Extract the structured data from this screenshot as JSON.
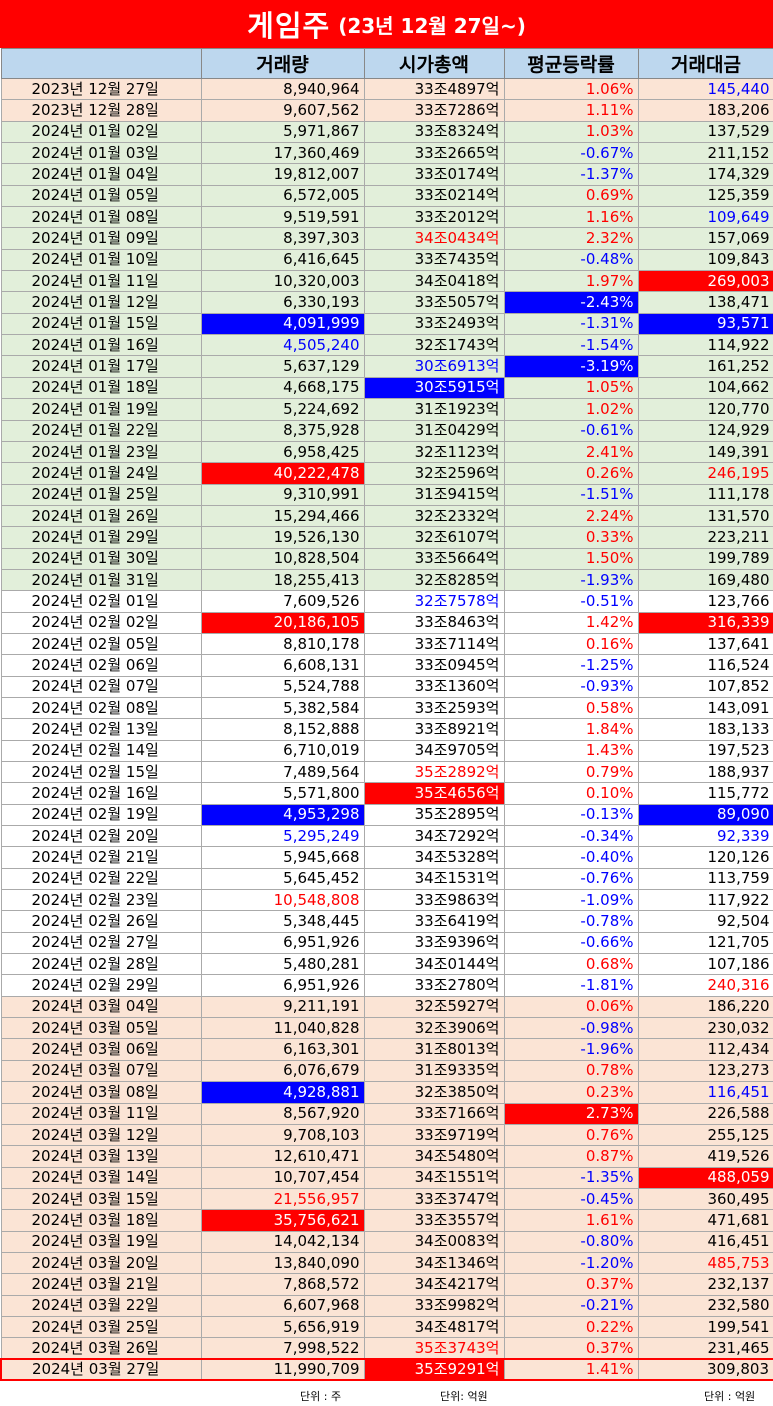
{
  "title": {
    "main": "게임주",
    "sub": "(23년 12월 27일~)"
  },
  "headers": [
    "",
    "거래량",
    "시가총액",
    "평균등락률",
    "거래대금"
  ],
  "rows": [
    {
      "date": "2023년 12월 27일",
      "vol": "8,940,964",
      "cap": "33조4897억",
      "chg": "1.06%",
      "amt": "145,440",
      "bg": "peach",
      "amt_s": "b"
    },
    {
      "date": "2023년 12월 28일",
      "vol": "9,607,562",
      "cap": "33조7286억",
      "chg": "1.11%",
      "amt": "183,206",
      "bg": "peach"
    },
    {
      "date": "2024년 01월 02일",
      "vol": "5,971,867",
      "cap": "33조8324억",
      "chg": "1.03%",
      "amt": "137,529",
      "bg": "green"
    },
    {
      "date": "2024년 01월 03일",
      "vol": "17,360,469",
      "cap": "33조2665억",
      "chg": "-0.67%",
      "amt": "211,152",
      "bg": "green"
    },
    {
      "date": "2024년 01월 04일",
      "vol": "19,812,007",
      "cap": "33조0174억",
      "chg": "-1.37%",
      "amt": "174,329",
      "bg": "green"
    },
    {
      "date": "2024년 01월 05일",
      "vol": "6,572,005",
      "cap": "33조0214억",
      "chg": "0.69%",
      "amt": "125,359",
      "bg": "green"
    },
    {
      "date": "2024년 01월 08일",
      "vol": "9,519,591",
      "cap": "33조2012억",
      "chg": "1.16%",
      "amt": "109,649",
      "bg": "green",
      "amt_s": "b"
    },
    {
      "date": "2024년 01월 09일",
      "vol": "8,397,303",
      "cap": "34조0434억",
      "chg": "2.32%",
      "amt": "157,069",
      "bg": "green",
      "cap_s": "r"
    },
    {
      "date": "2024년 01월 10일",
      "vol": "6,416,645",
      "cap": "33조7435억",
      "chg": "-0.48%",
      "amt": "109,843",
      "bg": "green"
    },
    {
      "date": "2024년 01월 11일",
      "vol": "10,320,003",
      "cap": "34조0418억",
      "chg": "1.97%",
      "amt": "269,003",
      "bg": "green",
      "amt_s": "hr"
    },
    {
      "date": "2024년 01월 12일",
      "vol": "6,330,193",
      "cap": "33조5057억",
      "chg": "-2.43%",
      "amt": "138,471",
      "bg": "green",
      "chg_s": "hb"
    },
    {
      "date": "2024년 01월 15일",
      "vol": "4,091,999",
      "cap": "33조2493억",
      "chg": "-1.31%",
      "amt": "93,571",
      "bg": "green",
      "vol_s": "hb",
      "amt_s": "hb"
    },
    {
      "date": "2024년 01월 16일",
      "vol": "4,505,240",
      "cap": "32조1743억",
      "chg": "-1.54%",
      "amt": "114,922",
      "bg": "green",
      "vol_s": "b"
    },
    {
      "date": "2024년 01월 17일",
      "vol": "5,637,129",
      "cap": "30조6913억",
      "chg": "-3.19%",
      "amt": "161,252",
      "bg": "green",
      "cap_s": "b",
      "chg_s": "hb"
    },
    {
      "date": "2024년 01월 18일",
      "vol": "4,668,175",
      "cap": "30조5915억",
      "chg": "1.05%",
      "amt": "104,662",
      "bg": "green",
      "cap_s": "hb"
    },
    {
      "date": "2024년 01월 19일",
      "vol": "5,224,692",
      "cap": "31조1923억",
      "chg": "1.02%",
      "amt": "120,770",
      "bg": "green"
    },
    {
      "date": "2024년 01월 22일",
      "vol": "8,375,928",
      "cap": "31조0429억",
      "chg": "-0.61%",
      "amt": "124,929",
      "bg": "green"
    },
    {
      "date": "2024년 01월 23일",
      "vol": "6,958,425",
      "cap": "32조1123억",
      "chg": "2.41%",
      "amt": "149,391",
      "bg": "green"
    },
    {
      "date": "2024년 01월 24일",
      "vol": "40,222,478",
      "cap": "32조2596억",
      "chg": "0.26%",
      "amt": "246,195",
      "bg": "green",
      "vol_s": "hr",
      "amt_s": "r"
    },
    {
      "date": "2024년 01월 25일",
      "vol": "9,310,991",
      "cap": "31조9415억",
      "chg": "-1.51%",
      "amt": "111,178",
      "bg": "green"
    },
    {
      "date": "2024년 01월 26일",
      "vol": "15,294,466",
      "cap": "32조2332억",
      "chg": "2.24%",
      "amt": "131,570",
      "bg": "green"
    },
    {
      "date": "2024년 01월 29일",
      "vol": "19,526,130",
      "cap": "32조6107억",
      "chg": "0.33%",
      "amt": "223,211",
      "bg": "green"
    },
    {
      "date": "2024년 01월 30일",
      "vol": "10,828,504",
      "cap": "33조5664억",
      "chg": "1.50%",
      "amt": "199,789",
      "bg": "green"
    },
    {
      "date": "2024년 01월 31일",
      "vol": "18,255,413",
      "cap": "32조8285억",
      "chg": "-1.93%",
      "amt": "169,480",
      "bg": "green"
    },
    {
      "date": "2024년 02월 01일",
      "vol": "7,609,526",
      "cap": "32조7578억",
      "chg": "-0.51%",
      "amt": "123,766",
      "bg": "white",
      "cap_s": "b"
    },
    {
      "date": "2024년 02월 02일",
      "vol": "20,186,105",
      "cap": "33조8463억",
      "chg": "1.42%",
      "amt": "316,339",
      "bg": "white",
      "vol_s": "hr",
      "amt_s": "hr"
    },
    {
      "date": "2024년 02월 05일",
      "vol": "8,810,178",
      "cap": "33조7114억",
      "chg": "0.16%",
      "amt": "137,641",
      "bg": "white"
    },
    {
      "date": "2024년 02월 06일",
      "vol": "6,608,131",
      "cap": "33조0945억",
      "chg": "-1.25%",
      "amt": "116,524",
      "bg": "white"
    },
    {
      "date": "2024년 02월 07일",
      "vol": "5,524,788",
      "cap": "33조1360억",
      "chg": "-0.93%",
      "amt": "107,852",
      "bg": "white"
    },
    {
      "date": "2024년 02월 08일",
      "vol": "5,382,584",
      "cap": "33조2593억",
      "chg": "0.58%",
      "amt": "143,091",
      "bg": "white"
    },
    {
      "date": "2024년 02월 13일",
      "vol": "8,152,888",
      "cap": "33조8921억",
      "chg": "1.84%",
      "amt": "183,133",
      "bg": "white"
    },
    {
      "date": "2024년 02월 14일",
      "vol": "6,710,019",
      "cap": "34조9705억",
      "chg": "1.43%",
      "amt": "197,523",
      "bg": "white"
    },
    {
      "date": "2024년 02월 15일",
      "vol": "7,489,564",
      "cap": "35조2892억",
      "chg": "0.79%",
      "amt": "188,937",
      "bg": "white",
      "cap_s": "r"
    },
    {
      "date": "2024년 02월 16일",
      "vol": "5,571,800",
      "cap": "35조4656억",
      "chg": "0.10%",
      "amt": "115,772",
      "bg": "white",
      "cap_s": "hr"
    },
    {
      "date": "2024년 02월 19일",
      "vol": "4,953,298",
      "cap": "35조2895억",
      "chg": "-0.13%",
      "amt": "89,090",
      "bg": "white",
      "vol_s": "hb",
      "amt_s": "hb"
    },
    {
      "date": "2024년 02월 20일",
      "vol": "5,295,249",
      "cap": "34조7292억",
      "chg": "-0.34%",
      "amt": "92,339",
      "bg": "white",
      "vol_s": "b",
      "amt_s": "b"
    },
    {
      "date": "2024년 02월 21일",
      "vol": "5,945,668",
      "cap": "34조5328억",
      "chg": "-0.40%",
      "amt": "120,126",
      "bg": "white"
    },
    {
      "date": "2024년 02월 22일",
      "vol": "5,645,452",
      "cap": "34조1531억",
      "chg": "-0.76%",
      "amt": "113,759",
      "bg": "white"
    },
    {
      "date": "2024년 02월 23일",
      "vol": "10,548,808",
      "cap": "33조9863억",
      "chg": "-1.09%",
      "amt": "117,922",
      "bg": "white",
      "vol_s": "r"
    },
    {
      "date": "2024년 02월 26일",
      "vol": "5,348,445",
      "cap": "33조6419억",
      "chg": "-0.78%",
      "amt": "92,504",
      "bg": "white"
    },
    {
      "date": "2024년 02월 27일",
      "vol": "6,951,926",
      "cap": "33조9396억",
      "chg": "-0.66%",
      "amt": "121,705",
      "bg": "white"
    },
    {
      "date": "2024년 02월 28일",
      "vol": "5,480,281",
      "cap": "34조0144억",
      "chg": "0.68%",
      "amt": "107,186",
      "bg": "white"
    },
    {
      "date": "2024년 02월 29일",
      "vol": "6,951,926",
      "cap": "33조2780억",
      "chg": "-1.81%",
      "amt": "240,316",
      "bg": "white",
      "amt_s": "r"
    },
    {
      "date": "2024년 03월 04일",
      "vol": "9,211,191",
      "cap": "32조5927억",
      "chg": "0.06%",
      "amt": "186,220",
      "bg": "peach"
    },
    {
      "date": "2024년 03월 05일",
      "vol": "11,040,828",
      "cap": "32조3906억",
      "chg": "-0.98%",
      "amt": "230,032",
      "bg": "peach"
    },
    {
      "date": "2024년 03월 06일",
      "vol": "6,163,301",
      "cap": "31조8013억",
      "chg": "-1.96%",
      "amt": "112,434",
      "bg": "peach"
    },
    {
      "date": "2024년 03월 07일",
      "vol": "6,076,679",
      "cap": "31조9335억",
      "chg": "0.78%",
      "amt": "123,273",
      "bg": "peach"
    },
    {
      "date": "2024년 03월 08일",
      "vol": "4,928,881",
      "cap": "32조3850억",
      "chg": "0.23%",
      "amt": "116,451",
      "bg": "peach",
      "vol_s": "hb",
      "amt_s": "b"
    },
    {
      "date": "2024년 03월 11일",
      "vol": "8,567,920",
      "cap": "33조7166억",
      "chg": "2.73%",
      "amt": "226,588",
      "bg": "peach",
      "chg_s": "hr"
    },
    {
      "date": "2024년 03월 12일",
      "vol": "9,708,103",
      "cap": "33조9719억",
      "chg": "0.76%",
      "amt": "255,125",
      "bg": "peach"
    },
    {
      "date": "2024년 03월 13일",
      "vol": "12,610,471",
      "cap": "34조5480억",
      "chg": "0.87%",
      "amt": "419,526",
      "bg": "peach"
    },
    {
      "date": "2024년 03월 14일",
      "vol": "10,707,454",
      "cap": "34조1551억",
      "chg": "-1.35%",
      "amt": "488,059",
      "bg": "peach",
      "amt_s": "hr"
    },
    {
      "date": "2024년 03월 15일",
      "vol": "21,556,957",
      "cap": "33조3747억",
      "chg": "-0.45%",
      "amt": "360,495",
      "bg": "peach",
      "vol_s": "r"
    },
    {
      "date": "2024년 03월 18일",
      "vol": "35,756,621",
      "cap": "33조3557억",
      "chg": "1.61%",
      "amt": "471,681",
      "bg": "peach",
      "vol_s": "hr"
    },
    {
      "date": "2024년 03월 19일",
      "vol": "14,042,134",
      "cap": "34조0083억",
      "chg": "-0.80%",
      "amt": "416,451",
      "bg": "peach"
    },
    {
      "date": "2024년 03월 20일",
      "vol": "13,840,090",
      "cap": "34조1346억",
      "chg": "-1.20%",
      "amt": "485,753",
      "bg": "peach",
      "amt_s": "r"
    },
    {
      "date": "2024년 03월 21일",
      "vol": "7,868,572",
      "cap": "34조4217억",
      "chg": "0.37%",
      "amt": "232,137",
      "bg": "peach"
    },
    {
      "date": "2024년 03월 22일",
      "vol": "6,607,968",
      "cap": "33조9982억",
      "chg": "-0.21%",
      "amt": "232,580",
      "bg": "peach"
    },
    {
      "date": "2024년 03월 25일",
      "vol": "5,656,919",
      "cap": "34조4817억",
      "chg": "0.22%",
      "amt": "199,541",
      "bg": "peach"
    },
    {
      "date": "2024년 03월 26일",
      "vol": "7,998,522",
      "cap": "35조3743억",
      "chg": "0.37%",
      "amt": "231,465",
      "bg": "peach",
      "cap_s": "r"
    },
    {
      "date": "2024년 03월 27일",
      "vol": "11,990,709",
      "cap": "35조9291억",
      "chg": "1.41%",
      "amt": "309,803",
      "bg": "peach",
      "cap_s": "hr",
      "last": true
    }
  ],
  "footer": {
    "vol_unit": "단위 : 주",
    "cap_unit": "단위: 억원",
    "amt_unit": "단위 : 억원"
  },
  "colors": {
    "title_bg": "#ff0000",
    "header_bg": "#bdd7ee",
    "highlight_red": "#ff0000",
    "highlight_blue": "#0000ff",
    "peach": "#fbe4d5",
    "green": "#e2efda"
  }
}
